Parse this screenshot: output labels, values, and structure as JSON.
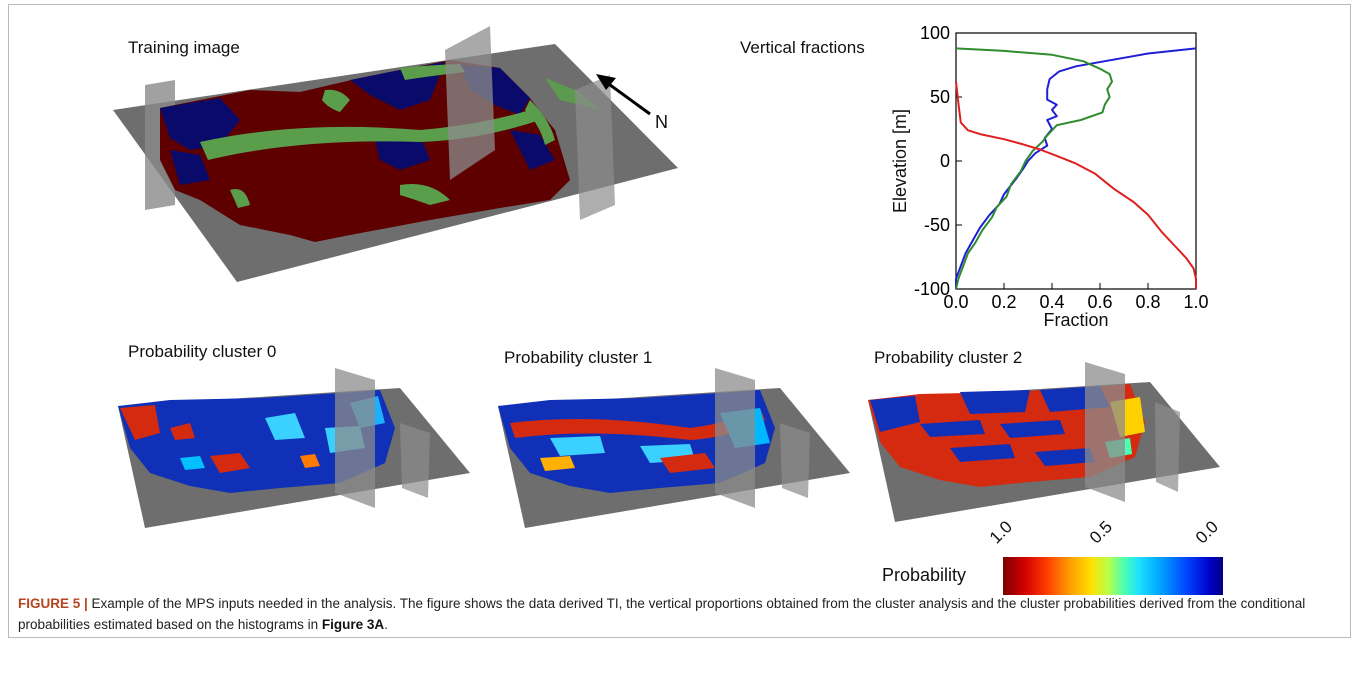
{
  "panels": {
    "training_title": "Training image",
    "fractions_title": "Vertical fractions",
    "cluster0_title": "Probability cluster 0",
    "cluster1_title": "Probability cluster 1",
    "cluster2_title": "Probability cluster 2",
    "north_label": "N"
  },
  "colorbar": {
    "label": "Probability",
    "ticks": [
      "1.0",
      "0.5",
      "0.0"
    ]
  },
  "chart_data": {
    "type": "line",
    "title": "",
    "xlabel": "Fraction",
    "ylabel": "Elevation [m]",
    "xlim": [
      0.0,
      1.0
    ],
    "ylim": [
      -100,
      100
    ],
    "xticks": [
      "0.0",
      "0.2",
      "0.4",
      "0.6",
      "0.8",
      "1.0"
    ],
    "yticks": [
      "100",
      "50",
      "0",
      "-50",
      "-100"
    ],
    "series": [
      {
        "color": "#1f1fd6",
        "points": [
          [
            1.0,
            88
          ],
          [
            0.8,
            84
          ],
          [
            0.62,
            78
          ],
          [
            0.5,
            74
          ],
          [
            0.43,
            70
          ],
          [
            0.39,
            64
          ],
          [
            0.38,
            56
          ],
          [
            0.38,
            48
          ],
          [
            0.42,
            44
          ],
          [
            0.4,
            40
          ],
          [
            0.42,
            35
          ],
          [
            0.38,
            32
          ],
          [
            0.4,
            25
          ],
          [
            0.37,
            18
          ],
          [
            0.38,
            12
          ],
          [
            0.33,
            6
          ],
          [
            0.3,
            0
          ],
          [
            0.28,
            -6
          ],
          [
            0.25,
            -14
          ],
          [
            0.2,
            -26
          ],
          [
            0.18,
            -34
          ],
          [
            0.14,
            -42
          ],
          [
            0.1,
            -52
          ],
          [
            0.07,
            -62
          ],
          [
            0.04,
            -72
          ],
          [
            0.02,
            -82
          ],
          [
            0.0,
            -92
          ],
          [
            0.0,
            -100
          ]
        ]
      },
      {
        "color": "#2e8b2e",
        "points": [
          [
            0.0,
            88
          ],
          [
            0.2,
            86
          ],
          [
            0.4,
            83
          ],
          [
            0.53,
            78
          ],
          [
            0.6,
            72
          ],
          [
            0.64,
            68
          ],
          [
            0.65,
            62
          ],
          [
            0.63,
            56
          ],
          [
            0.64,
            50
          ],
          [
            0.62,
            44
          ],
          [
            0.61,
            38
          ],
          [
            0.52,
            32
          ],
          [
            0.42,
            28
          ],
          [
            0.38,
            20
          ],
          [
            0.36,
            15
          ],
          [
            0.32,
            8
          ],
          [
            0.29,
            0
          ],
          [
            0.27,
            -8
          ],
          [
            0.23,
            -18
          ],
          [
            0.21,
            -28
          ],
          [
            0.17,
            -36
          ],
          [
            0.15,
            -44
          ],
          [
            0.11,
            -54
          ],
          [
            0.08,
            -64
          ],
          [
            0.05,
            -72
          ],
          [
            0.03,
            -82
          ],
          [
            0.01,
            -92
          ],
          [
            0.0,
            -100
          ]
        ]
      },
      {
        "color": "#e02020",
        "points": [
          [
            0.0,
            62
          ],
          [
            0.01,
            45
          ],
          [
            0.02,
            30
          ],
          [
            0.05,
            24
          ],
          [
            0.1,
            21
          ],
          [
            0.2,
            17
          ],
          [
            0.28,
            13
          ],
          [
            0.35,
            9
          ],
          [
            0.42,
            4
          ],
          [
            0.5,
            -2
          ],
          [
            0.58,
            -10
          ],
          [
            0.66,
            -22
          ],
          [
            0.74,
            -32
          ],
          [
            0.8,
            -42
          ],
          [
            0.86,
            -56
          ],
          [
            0.92,
            -68
          ],
          [
            0.96,
            -76
          ],
          [
            0.99,
            -84
          ],
          [
            1.0,
            -92
          ],
          [
            1.0,
            -100
          ]
        ]
      }
    ]
  },
  "caption": {
    "figure_label": "FIGURE 5 |",
    "text_before_ref": " Example of the MPS inputs needed in the analysis. The figure shows the data derived TI, the vertical proportions obtained from the cluster analysis and the cluster probabilities derived from the conditional probabilities estimated based on the histograms in ",
    "ref": "Figure 3A",
    "text_after_ref": "."
  },
  "colors": {
    "clay_red": "#5e0000",
    "sand_green": "#5a9e4b",
    "gravel_blue": "#0a0a6a",
    "plane_gray": "#707070"
  }
}
